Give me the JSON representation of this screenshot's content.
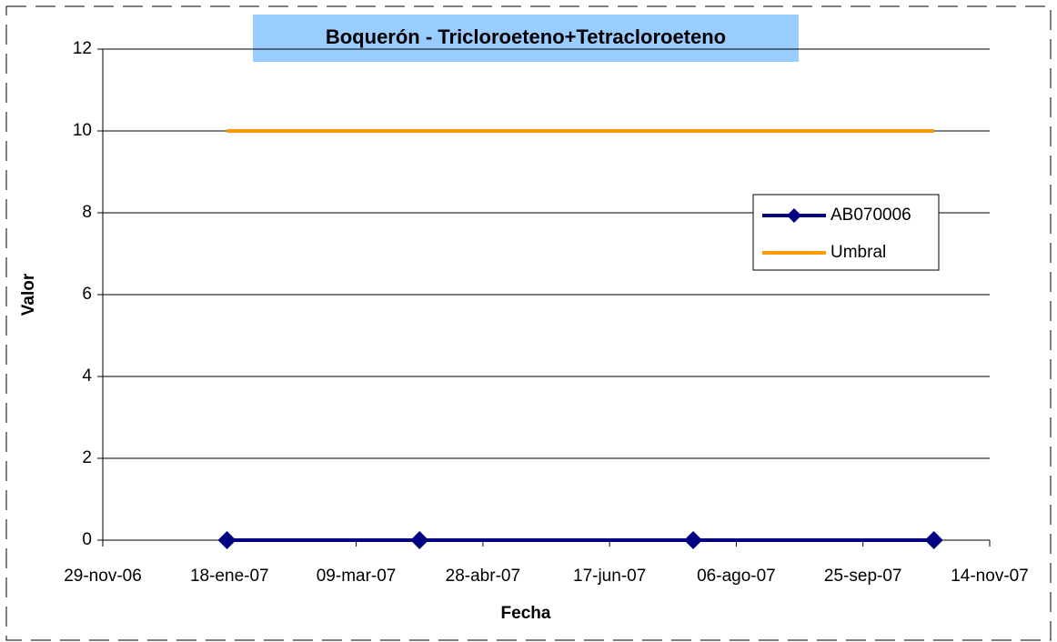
{
  "chart_data": {
    "type": "line",
    "title": "Boquerón - Tricloroeteno+Tetracloroeteno",
    "x_label": "Fecha",
    "y_label": "Valor",
    "x": [
      "2007-01-17",
      "2007-04-03",
      "2007-07-20",
      "2007-10-23"
    ],
    "series": [
      {
        "name": "AB070006",
        "color": "#000080",
        "marker": "diamond",
        "values": [
          0,
          0,
          0,
          0
        ]
      },
      {
        "name": "Umbral",
        "color": "#ff9900",
        "values": [
          10,
          10,
          10,
          10
        ]
      }
    ],
    "xlim": [
      "2006-11-29",
      "2007-11-14"
    ],
    "xticks": [
      {
        "value": "2006-11-29",
        "label": "29-nov-06"
      },
      {
        "value": "2007-01-18",
        "label": "18-ene-07"
      },
      {
        "value": "2007-03-09",
        "label": "09-mar-07"
      },
      {
        "value": "2007-04-28",
        "label": "28-abr-07"
      },
      {
        "value": "2007-06-17",
        "label": "17-jun-07"
      },
      {
        "value": "2007-08-06",
        "label": "06-ago-07"
      },
      {
        "value": "2007-09-25",
        "label": "25-sep-07"
      },
      {
        "value": "2007-11-14",
        "label": "14-nov-07"
      }
    ],
    "ylim": [
      0,
      12
    ],
    "yticks": [
      0,
      2,
      4,
      6,
      8,
      10,
      12
    ],
    "grid": true,
    "legend": "right"
  }
}
